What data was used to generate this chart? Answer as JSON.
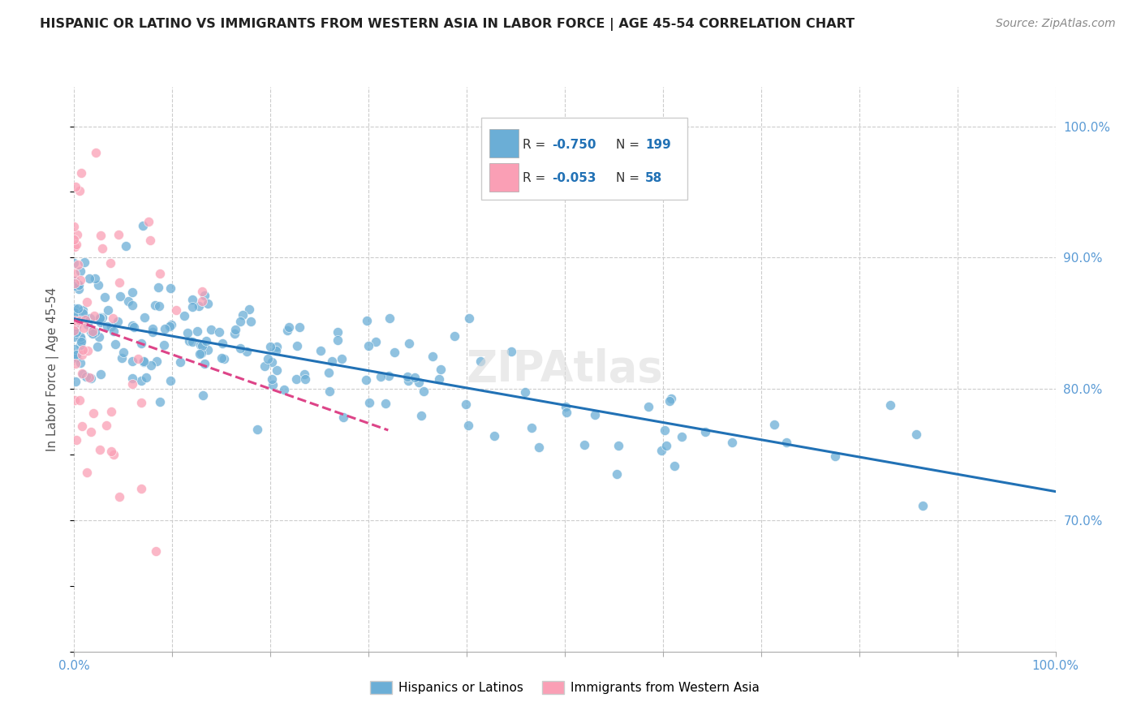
{
  "title": "HISPANIC OR LATINO VS IMMIGRANTS FROM WESTERN ASIA IN LABOR FORCE | AGE 45-54 CORRELATION CHART",
  "source": "Source: ZipAtlas.com",
  "ylabel": "In Labor Force | Age 45-54",
  "xlim": [
    0.0,
    1.0
  ],
  "ylim": [
    0.6,
    1.03
  ],
  "y_ticks_right": [
    0.7,
    0.8,
    0.9,
    1.0
  ],
  "y_tick_labels_right": [
    "70.0%",
    "80.0%",
    "90.0%",
    "100.0%"
  ],
  "legend_blue_label": "Hispanics or Latinos",
  "legend_pink_label": "Immigrants from Western Asia",
  "R_blue": "-0.750",
  "N_blue": "199",
  "R_pink": "-0.053",
  "N_pink": "58",
  "blue_color": "#6baed6",
  "blue_line_color": "#2171b5",
  "pink_color": "#fa9fb5",
  "pink_line_color": "#dd4488",
  "background_color": "#ffffff",
  "grid_color": "#cccccc",
  "watermark": "ZIPAtlas"
}
